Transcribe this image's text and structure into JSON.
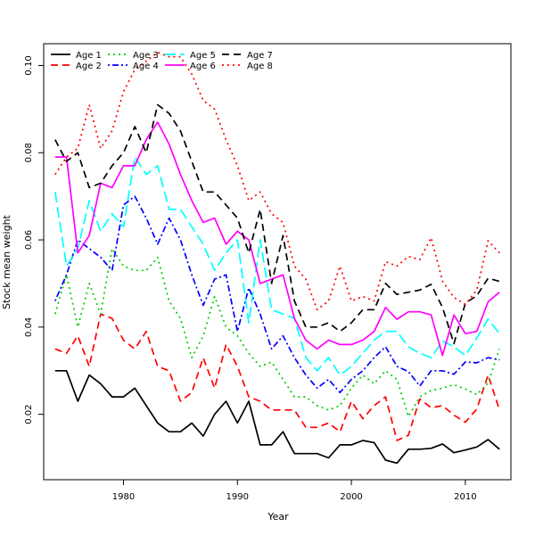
{
  "chart_data": {
    "type": "line",
    "title": "",
    "xlabel": "Year",
    "ylabel": "Stock mean weight",
    "xlim": [
      1973,
      2014
    ],
    "ylim": [
      0.005,
      0.105
    ],
    "x_ticks": [
      1980,
      1990,
      2000,
      2010
    ],
    "y_ticks": [
      0.02,
      0.04,
      0.06,
      0.08,
      0.1
    ],
    "x_tick_labels": [
      "1980",
      "1990",
      "2000",
      "2010"
    ],
    "y_tick_labels": [
      "0.02",
      "0.04",
      "0.06",
      "0.08",
      "0.10"
    ],
    "grid": false,
    "legend_position": "top-left",
    "x": [
      1974,
      1975,
      1976,
      1977,
      1978,
      1979,
      1980,
      1981,
      1982,
      1983,
      1984,
      1985,
      1986,
      1987,
      1988,
      1989,
      1990,
      1991,
      1992,
      1993,
      1994,
      1995,
      1996,
      1997,
      1998,
      1999,
      2000,
      2001,
      2002,
      2003,
      2004,
      2005,
      2006,
      2007,
      2008,
      2009,
      2010,
      2011,
      2012,
      2013
    ],
    "series": [
      {
        "name": "Age 1",
        "color": "#000000",
        "dash": "solid",
        "values": [
          0.03,
          0.03,
          0.023,
          0.029,
          0.027,
          0.024,
          0.024,
          0.026,
          0.022,
          0.018,
          0.016,
          0.016,
          0.018,
          0.015,
          0.02,
          0.023,
          0.018,
          0.023,
          0.013,
          0.013,
          0.016,
          0.011,
          0.011,
          0.011,
          0.01,
          0.013,
          0.013,
          0.014,
          0.0135,
          0.0095,
          0.0088,
          0.012,
          0.012,
          0.0122,
          0.0132,
          0.0112,
          0.0118,
          0.0125,
          0.0142,
          0.012
        ]
      },
      {
        "name": "Age 2",
        "color": "#ff0000",
        "dash": "dashed",
        "values": [
          0.035,
          0.034,
          0.038,
          0.031,
          0.043,
          0.042,
          0.037,
          0.035,
          0.039,
          0.031,
          0.03,
          0.023,
          0.025,
          0.033,
          0.026,
          0.036,
          0.031,
          0.024,
          0.023,
          0.021,
          0.021,
          0.021,
          0.017,
          0.017,
          0.018,
          0.016,
          0.023,
          0.019,
          0.022,
          0.024,
          0.014,
          0.0152,
          0.0235,
          0.0215,
          0.022,
          0.0198,
          0.0182,
          0.0212,
          0.029,
          0.021
        ]
      },
      {
        "name": "Age 3",
        "color": "#00cd00",
        "dash": "dotted",
        "values": [
          0.043,
          0.052,
          0.04,
          0.05,
          0.043,
          0.058,
          0.054,
          0.053,
          0.053,
          0.056,
          0.046,
          0.042,
          0.033,
          0.038,
          0.047,
          0.04,
          0.038,
          0.034,
          0.031,
          0.032,
          0.028,
          0.024,
          0.024,
          0.022,
          0.021,
          0.022,
          0.026,
          0.029,
          0.027,
          0.03,
          0.028,
          0.0195,
          0.024,
          0.0255,
          0.026,
          0.0268,
          0.0258,
          0.0245,
          0.0272,
          0.035
        ]
      },
      {
        "name": "Age 4",
        "color": "#0000ff",
        "dash": "dotdash",
        "values": [
          0.046,
          0.052,
          0.06,
          0.058,
          0.056,
          0.053,
          0.068,
          0.07,
          0.065,
          0.059,
          0.065,
          0.06,
          0.052,
          0.045,
          0.051,
          0.052,
          0.039,
          0.049,
          0.043,
          0.035,
          0.038,
          0.033,
          0.029,
          0.026,
          0.028,
          0.025,
          0.028,
          0.03,
          0.033,
          0.0355,
          0.031,
          0.0298,
          0.0265,
          0.03,
          0.03,
          0.0292,
          0.032,
          0.0318,
          0.033,
          0.0325
        ]
      },
      {
        "name": "Age 5",
        "color": "#00ffff",
        "dash": "longdash",
        "values": [
          0.071,
          0.054,
          0.058,
          0.069,
          0.062,
          0.066,
          0.063,
          0.079,
          0.075,
          0.077,
          0.067,
          0.067,
          0.063,
          0.059,
          0.053,
          0.057,
          0.06,
          0.041,
          0.06,
          0.044,
          0.043,
          0.042,
          0.033,
          0.03,
          0.033,
          0.029,
          0.031,
          0.034,
          0.037,
          0.039,
          0.039,
          0.0355,
          0.034,
          0.033,
          0.0368,
          0.0355,
          0.0335,
          0.0375,
          0.0418,
          0.0385
        ]
      },
      {
        "name": "Age 6",
        "color": "#ff00ff",
        "dash": "solid",
        "values": [
          0.079,
          0.079,
          0.057,
          0.061,
          0.073,
          0.072,
          0.077,
          0.077,
          0.083,
          0.087,
          0.082,
          0.075,
          0.069,
          0.064,
          0.065,
          0.059,
          0.062,
          0.06,
          0.05,
          0.051,
          0.052,
          0.042,
          0.037,
          0.035,
          0.037,
          0.036,
          0.036,
          0.037,
          0.039,
          0.0445,
          0.0418,
          0.0435,
          0.0435,
          0.0428,
          0.0335,
          0.0428,
          0.0385,
          0.039,
          0.0458,
          0.048
        ]
      },
      {
        "name": "Age 7",
        "color": "#000000",
        "dash": "dashed",
        "values": [
          0.083,
          0.078,
          0.08,
          0.072,
          0.073,
          0.077,
          0.08,
          0.086,
          0.08,
          0.091,
          0.089,
          0.085,
          0.078,
          0.071,
          0.071,
          0.068,
          0.065,
          0.057,
          0.067,
          0.05,
          0.061,
          0.046,
          0.04,
          0.04,
          0.041,
          0.039,
          0.041,
          0.044,
          0.044,
          0.05,
          0.0475,
          0.048,
          0.0485,
          0.0498,
          0.0445,
          0.0362,
          0.0455,
          0.0472,
          0.0512,
          0.0505
        ]
      },
      {
        "name": "Age 8",
        "color": "#ff0000",
        "dash": "dotted",
        "values": [
          0.075,
          0.079,
          0.081,
          0.091,
          0.081,
          0.085,
          0.094,
          0.099,
          0.101,
          0.103,
          0.102,
          0.102,
          0.098,
          0.092,
          0.09,
          0.083,
          0.077,
          0.069,
          0.071,
          0.066,
          0.064,
          0.054,
          0.051,
          0.044,
          0.046,
          0.054,
          0.046,
          0.047,
          0.046,
          0.055,
          0.054,
          0.0562,
          0.0555,
          0.0605,
          0.0505,
          0.0468,
          0.0452,
          0.0485,
          0.0598,
          0.057
        ]
      }
    ]
  }
}
